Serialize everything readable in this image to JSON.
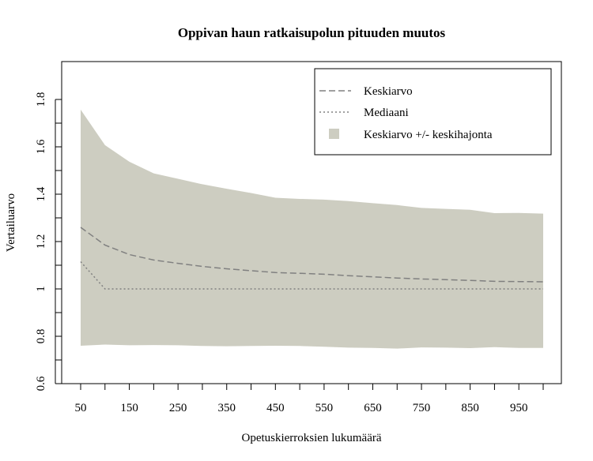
{
  "chart_data": {
    "type": "area",
    "title": "Oppivan haun ratkaisupolun pituuden muutos",
    "xlabel": "Opetuskierroksien lukumäärä",
    "ylabel": "Vertailuarvo",
    "xlim": [
      50,
      1000
    ],
    "ylim": [
      0.6,
      1.8
    ],
    "x_ticks_labeled": [
      50,
      150,
      250,
      350,
      450,
      550,
      650,
      750,
      850,
      950
    ],
    "x_ticks_minor": [
      100,
      200,
      300,
      400,
      500,
      600,
      700,
      800,
      900,
      1000
    ],
    "y_ticks": [
      0.6,
      0.8,
      1,
      1.2,
      1.4,
      1.6,
      1.8
    ],
    "y_tick_labels": [
      "0.6",
      "0.8",
      "1",
      "1.2",
      "1.4",
      "1.6",
      "1.8"
    ],
    "y_ticks_minor": [
      0.7,
      0.9,
      1.1,
      1.3,
      1.5,
      1.7
    ],
    "x": [
      50,
      100,
      150,
      200,
      250,
      300,
      350,
      400,
      450,
      500,
      550,
      600,
      650,
      700,
      750,
      800,
      850,
      900,
      950,
      1000
    ],
    "series": [
      {
        "name": "Keskiarvo",
        "style": "dashed",
        "color": "#808080",
        "values": [
          1.26,
          1.185,
          1.145,
          1.122,
          1.108,
          1.095,
          1.085,
          1.077,
          1.069,
          1.066,
          1.062,
          1.056,
          1.051,
          1.046,
          1.042,
          1.039,
          1.036,
          1.032,
          1.031,
          1.03
        ]
      },
      {
        "name": "Mediaani",
        "style": "dotted",
        "color": "#808080",
        "values": [
          1.115,
          1.0,
          1.0,
          1.0,
          1.0,
          1.0,
          1.0,
          1.0,
          1.0,
          1.0,
          1.0,
          1.0,
          1.0,
          1.0,
          1.0,
          1.0,
          1.0,
          1.0,
          1.0,
          1.0
        ]
      }
    ],
    "band": {
      "name": "Keskiarvo +/- keskihajonta",
      "color": "#cdcdc1",
      "upper": [
        1.757,
        1.607,
        1.537,
        1.488,
        1.465,
        1.442,
        1.423,
        1.405,
        1.385,
        1.38,
        1.377,
        1.371,
        1.362,
        1.354,
        1.342,
        1.338,
        1.334,
        1.32,
        1.321,
        1.318
      ],
      "lower": [
        0.76,
        0.765,
        0.762,
        0.763,
        0.762,
        0.759,
        0.758,
        0.759,
        0.76,
        0.759,
        0.756,
        0.752,
        0.751,
        0.748,
        0.753,
        0.752,
        0.75,
        0.754,
        0.751,
        0.751
      ]
    },
    "legend": {
      "position": "top-right",
      "entries": [
        {
          "label": "Keskiarvo",
          "kind": "dashed-line"
        },
        {
          "label": "Mediaani",
          "kind": "dotted-line"
        },
        {
          "label": "Keskiarvo +/- keskihajonta",
          "kind": "filled-square"
        }
      ]
    },
    "grid": false
  }
}
